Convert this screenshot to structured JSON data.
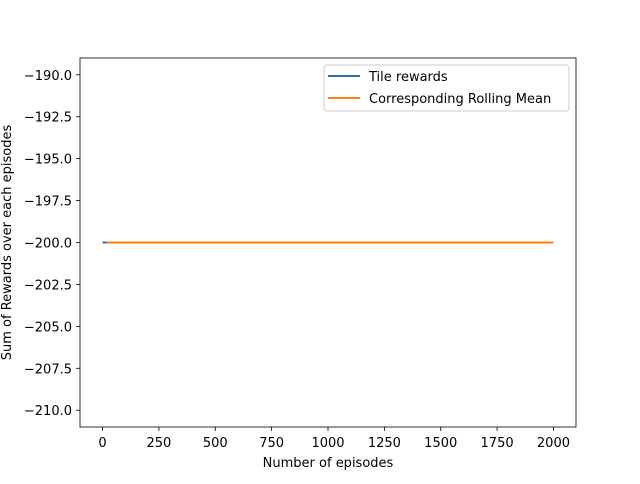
{
  "chart_data": {
    "type": "line",
    "title": "",
    "xlabel": "Number of episodes",
    "ylabel": "Sum of Rewards over each episodes",
    "xlim": [
      -100,
      2100
    ],
    "ylim": [
      -211,
      -189
    ],
    "x_ticks": [
      0,
      250,
      500,
      750,
      1000,
      1250,
      1500,
      1750,
      2000
    ],
    "x_tick_labels": [
      "0",
      "250",
      "500",
      "750",
      "1000",
      "1250",
      "1500",
      "1750",
      "2000"
    ],
    "y_ticks": [
      -190.0,
      -192.5,
      -195.0,
      -197.5,
      -200.0,
      -202.5,
      -205.0,
      -207.5,
      -210.0
    ],
    "y_tick_labels": [
      "−190.0",
      "−192.5",
      "−195.0",
      "−197.5",
      "−200.0",
      "−202.5",
      "−205.0",
      "−207.5",
      "−210.0"
    ],
    "grid": false,
    "legend_position": "top-right",
    "series": [
      {
        "name": "Tile rewards",
        "color": "#1f77b4",
        "x": [
          0,
          2000
        ],
        "y": [
          -200,
          -200
        ]
      },
      {
        "name": "Corresponding Rolling Mean",
        "color": "#ff7f0e",
        "x": [
          19,
          2000
        ],
        "y": [
          -200,
          -200
        ]
      }
    ]
  }
}
